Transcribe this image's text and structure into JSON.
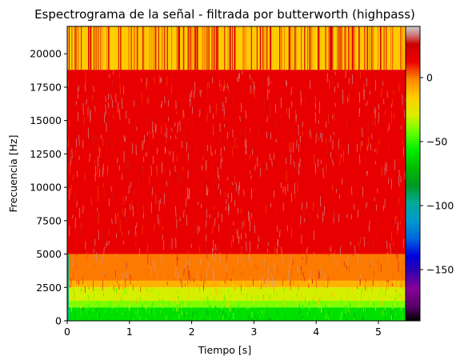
{
  "chart_data": {
    "type": "heatmap",
    "title": "Espectrograma de la señal - filtrada por butterworth (highpass)",
    "xlabel": "Tiempo [s]",
    "ylabel": "Frecuencia [Hz]",
    "xlim": [
      0,
      5.45
    ],
    "ylim": [
      0,
      22050
    ],
    "xticks": [
      0,
      1,
      2,
      3,
      4,
      5
    ],
    "xtick_labels": [
      "0",
      "1",
      "2",
      "3",
      "4",
      "5"
    ],
    "yticks": [
      0,
      2500,
      5000,
      7500,
      10000,
      12500,
      15000,
      17500,
      20000
    ],
    "ytick_labels": [
      "0",
      "2500",
      "5000",
      "7500",
      "10000",
      "12500",
      "15000",
      "17500",
      "20000"
    ],
    "colorbar": {
      "colormap": "nipy_spectral",
      "range": [
        -190,
        40
      ],
      "ticks": [
        0,
        -50,
        -100,
        -150
      ],
      "tick_labels": [
        "0",
        "−50",
        "−100",
        "−150"
      ]
    },
    "bands": [
      {
        "f_from": 18800,
        "f_to": 22050,
        "level_db": -15
      },
      {
        "f_from": 5000,
        "f_to": 18800,
        "level_db": 15
      },
      {
        "f_from": 3000,
        "f_to": 5000,
        "level_db": 0
      },
      {
        "f_from": 2500,
        "f_to": 3000,
        "level_db": -10
      },
      {
        "f_from": 1500,
        "f_to": 2500,
        "level_db": -30
      },
      {
        "f_from": 1000,
        "f_to": 1500,
        "level_db": -40
      },
      {
        "f_from": 0,
        "f_to": 1000,
        "level_db": -60
      }
    ]
  }
}
